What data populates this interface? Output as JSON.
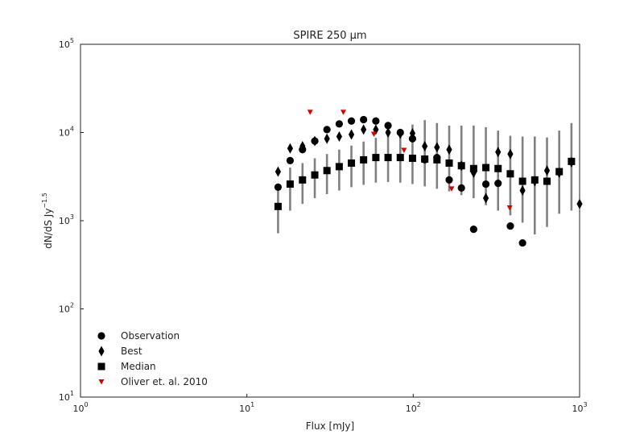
{
  "chart_data": {
    "type": "scatter",
    "title": "SPIRE 250 μm",
    "xlabel": "Flux [mJy]",
    "ylabel": "dN/dS Jy",
    "ylabel_exponent": "−1.5",
    "x_scale": "log",
    "y_scale": "log",
    "xlim": [
      1,
      1000
    ],
    "ylim": [
      10,
      100000
    ],
    "x_ticks": [
      {
        "value": 1,
        "base": "10",
        "exp": "0"
      },
      {
        "value": 10,
        "base": "10",
        "exp": "1"
      },
      {
        "value": 100,
        "base": "10",
        "exp": "2"
      },
      {
        "value": 1000,
        "base": "10",
        "exp": "3"
      }
    ],
    "y_ticks": [
      {
        "value": 10,
        "base": "10",
        "exp": "1"
      },
      {
        "value": 100,
        "base": "10",
        "exp": "2"
      },
      {
        "value": 1000,
        "base": "10",
        "exp": "3"
      },
      {
        "value": 10000,
        "base": "10",
        "exp": "4"
      },
      {
        "value": 100000,
        "base": "10",
        "exp": "5"
      }
    ],
    "grid": false,
    "legend_position": "lower-left",
    "legend": [
      "Observation",
      "Best",
      "Median",
      "Oliver et. al. 2010"
    ],
    "colors": {
      "points": "#000000",
      "errorbar": "#808080",
      "oliver": "#dd0000"
    },
    "series": [
      {
        "name": "Observation",
        "marker": "circle",
        "x": [
          15.4,
          18.2,
          21.6,
          25.6,
          30.3,
          35.9,
          42.5,
          50.3,
          59.6,
          70.6,
          83.6,
          99.0,
          117.3,
          138.9,
          164.5,
          194.8,
          230.7,
          273.3,
          323.6,
          383.3,
          454.0
        ],
        "y": [
          2400,
          4800,
          6400,
          8000,
          10800,
          12500,
          13500,
          14000,
          13500,
          12000,
          10000,
          8500,
          4900,
          5200,
          2900,
          2350,
          800,
          2600,
          2650,
          870,
          560
        ]
      },
      {
        "name": "Best",
        "marker": "diamond",
        "x": [
          15.4,
          18.2,
          21.6,
          25.6,
          30.3,
          35.9,
          42.5,
          50.3,
          59.6,
          70.6,
          83.6,
          99.0,
          117.3,
          138.9,
          164.5,
          194.8,
          230.7,
          273.3,
          323.6,
          383.3,
          454.0,
          537.7,
          636.9,
          754.3,
          893.4,
          1000
        ],
        "y": [
          3600,
          6600,
          7000,
          8000,
          8500,
          9000,
          9500,
          10800,
          10800,
          10000,
          9700,
          9800,
          7000,
          6800,
          6400,
          4200,
          3500,
          1800,
          6000,
          5700,
          2200,
          2800,
          3700,
          3500,
          4600,
          1550
        ]
      },
      {
        "name": "Median",
        "marker": "square",
        "x": [
          15.4,
          18.2,
          21.6,
          25.6,
          30.3,
          35.9,
          42.5,
          50.3,
          59.6,
          70.6,
          83.6,
          99.0,
          117.3,
          138.9,
          164.5,
          194.8,
          230.7,
          273.3,
          323.6,
          383.3,
          454.0,
          537.7,
          636.9,
          754.3,
          893.4
        ],
        "y": [
          1450,
          2600,
          2900,
          3300,
          3700,
          4100,
          4500,
          4900,
          5200,
          5200,
          5200,
          5100,
          5000,
          4900,
          4500,
          4200,
          3900,
          4000,
          3900,
          3400,
          2800,
          2900,
          2800,
          3600,
          4700
        ],
        "err_low": [
          720,
          1300,
          1550,
          1800,
          2000,
          2200,
          2400,
          2550,
          2700,
          2750,
          2700,
          2600,
          2450,
          2300,
          2150,
          1950,
          1800,
          1500,
          1300,
          1150,
          950,
          700,
          850,
          1200,
          1300
        ],
        "err_high": [
          2300,
          4000,
          4500,
          5100,
          5700,
          6400,
          7100,
          7900,
          8700,
          9700,
          10900,
          12300,
          13800,
          12800,
          12000,
          12000,
          12000,
          11500,
          10500,
          9200,
          9000,
          9000,
          8800,
          10500,
          12800
        ]
      },
      {
        "name": "Oliver et. al. 2010",
        "marker": "triangle-down",
        "x": [
          24.0,
          38.0,
          58.0,
          88.0,
          170.0,
          380.0
        ],
        "y": [
          17000,
          17000,
          9600,
          6300,
          2300,
          1400
        ]
      }
    ]
  }
}
